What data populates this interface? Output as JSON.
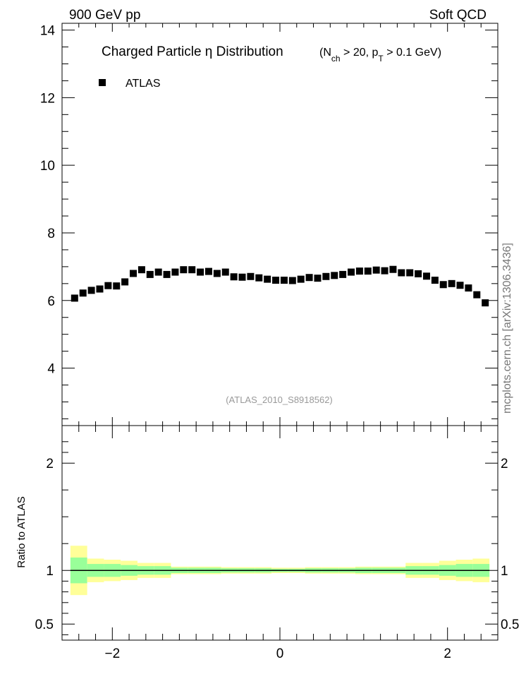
{
  "header": {
    "left": "900 GeV pp",
    "right": "Soft QCD"
  },
  "side_label": "mcplots.cern.ch [arXiv:1306.3436]",
  "chart_data": [
    {
      "type": "scatter",
      "title": {
        "main": "Charged Particle  η Distribution",
        "cut_open": "(N",
        "cut_sub1": "ch",
        "cut_mid": " > 20, p",
        "cut_sub2": "T",
        "cut_close": " > 0.1 GeV)"
      },
      "watermark": "(ATLAS_2010_S8918562)",
      "xlim": [
        -2.6,
        2.6
      ],
      "ylim": [
        2.3,
        14.2
      ],
      "yticks": [
        4,
        6,
        8,
        10,
        12,
        14
      ],
      "ytick_labels": [
        "4",
        "6",
        "8",
        "10",
        "12",
        "14"
      ],
      "legend": {
        "position": "top-left",
        "entries": [
          {
            "name": "ATLAS",
            "color": "#000000",
            "marker": "square"
          }
        ]
      },
      "series": [
        {
          "name": "ATLAS",
          "x": [
            -2.45,
            -2.35,
            -2.25,
            -2.15,
            -2.05,
            -1.95,
            -1.85,
            -1.75,
            -1.65,
            -1.55,
            -1.45,
            -1.35,
            -1.25,
            -1.15,
            -1.05,
            -0.95,
            -0.85,
            -0.75,
            -0.65,
            -0.55,
            -0.45,
            -0.35,
            -0.25,
            -0.15,
            -0.05,
            0.05,
            0.15,
            0.25,
            0.35,
            0.45,
            0.55,
            0.65,
            0.75,
            0.85,
            0.95,
            1.05,
            1.15,
            1.25,
            1.35,
            1.45,
            1.55,
            1.65,
            1.75,
            1.85,
            1.95,
            2.05,
            2.15,
            2.25,
            2.35,
            2.45
          ],
          "values": [
            6.07,
            6.22,
            6.3,
            6.34,
            6.44,
            6.43,
            6.55,
            6.8,
            6.91,
            6.77,
            6.84,
            6.77,
            6.84,
            6.91,
            6.91,
            6.84,
            6.86,
            6.8,
            6.84,
            6.7,
            6.69,
            6.71,
            6.67,
            6.63,
            6.6,
            6.6,
            6.59,
            6.63,
            6.68,
            6.66,
            6.71,
            6.74,
            6.77,
            6.84,
            6.87,
            6.87,
            6.9,
            6.88,
            6.92,
            6.82,
            6.82,
            6.79,
            6.72,
            6.6,
            6.47,
            6.5,
            6.45,
            6.37,
            6.17,
            5.93
          ]
        }
      ]
    },
    {
      "type": "area",
      "ylabel": "Ratio to ATLAS",
      "xlim": [
        -2.6,
        2.6
      ],
      "ylim": [
        0.35,
        2.35
      ],
      "xticks": [
        -2,
        0,
        2
      ],
      "xtick_labels": [
        "−2",
        "0",
        "2"
      ],
      "yticks": [
        0.5,
        1,
        2
      ],
      "ytick_labels": [
        "0.5",
        "1",
        "2"
      ],
      "bands": {
        "x_edges": [
          -2.5,
          -2.3,
          -2.1,
          -1.9,
          -1.7,
          -1.5,
          -1.3,
          -1.1,
          -0.9,
          -0.7,
          -0.5,
          -0.3,
          -0.1,
          0.1,
          0.3,
          0.5,
          0.7,
          0.9,
          1.1,
          1.3,
          1.5,
          1.7,
          1.9,
          2.1,
          2.3,
          2.5
        ],
        "outer_color": "#ffff99",
        "inner_color": "#99ff99",
        "inner_half_width": [
          0.12,
          0.06,
          0.06,
          0.05,
          0.04,
          0.04,
          0.025,
          0.025,
          0.025,
          0.02,
          0.02,
          0.02,
          0.015,
          0.015,
          0.02,
          0.02,
          0.02,
          0.025,
          0.025,
          0.025,
          0.04,
          0.04,
          0.05,
          0.06,
          0.06,
          0.12
        ],
        "outer_half_width": [
          0.23,
          0.11,
          0.1,
          0.09,
          0.07,
          0.07,
          0.035,
          0.035,
          0.035,
          0.03,
          0.03,
          0.03,
          0.025,
          0.025,
          0.03,
          0.03,
          0.03,
          0.035,
          0.035,
          0.035,
          0.07,
          0.07,
          0.09,
          0.1,
          0.11,
          0.23
        ]
      }
    }
  ]
}
